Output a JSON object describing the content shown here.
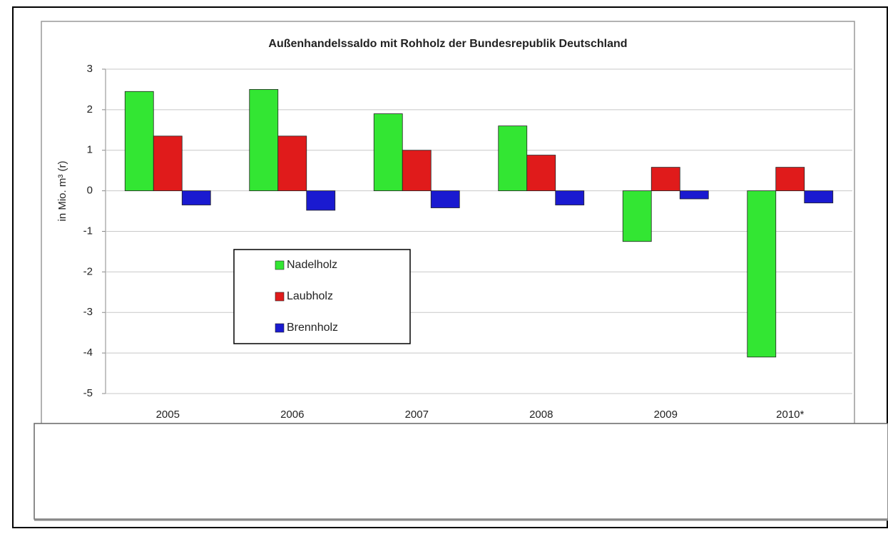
{
  "chart_data": {
    "type": "bar",
    "title": "Außenhandelssaldo mit Rohholz der Bundesrepublik Deutschland",
    "y_label": "in Mio. m³ (r)",
    "categories": [
      "2005",
      "2006",
      "2007",
      "2008",
      "2009",
      "2010*"
    ],
    "series": [
      {
        "name": "Nadelholz",
        "color": "#33e633",
        "values": [
          2.45,
          2.5,
          1.9,
          1.6,
          -1.25,
          -4.1
        ]
      },
      {
        "name": "Laubholz",
        "color": "#e01b1b",
        "values": [
          1.35,
          1.35,
          1.0,
          0.88,
          0.58,
          0.58
        ]
      },
      {
        "name": "Brennholz",
        "color": "#1a1ad0",
        "values": [
          -0.35,
          -0.48,
          -0.42,
          -0.35,
          -0.2,
          -0.3
        ]
      }
    ],
    "ylim": [
      -5,
      3
    ],
    "yticks": [
      -5,
      -4,
      -3,
      -2,
      -1,
      0,
      1,
      2,
      3
    ],
    "grid": true
  }
}
